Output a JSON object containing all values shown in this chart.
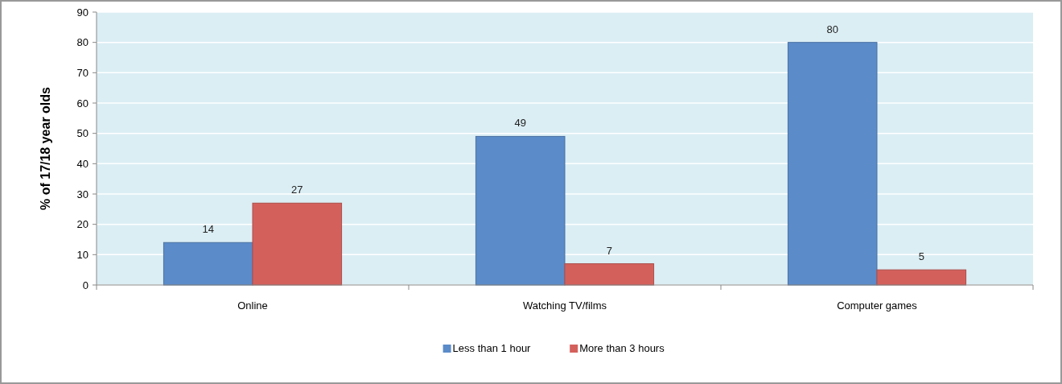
{
  "chart_data": {
    "type": "bar",
    "ylabel": "% of 17/18 year olds",
    "categories": [
      "Online",
      "Watching TV/films",
      "Computer games"
    ],
    "series": [
      {
        "name": "Less than 1 hour",
        "color": "#5b8bc9",
        "values": [
          14,
          49,
          80
        ]
      },
      {
        "name": "More than 3 hours",
        "color": "#d4605c",
        "values": [
          27,
          7,
          5
        ]
      }
    ],
    "ylim": [
      0,
      90
    ],
    "yticks": [
      0,
      10,
      20,
      30,
      40,
      50,
      60,
      70,
      80,
      90
    ],
    "grid": "y",
    "legend": "bottom",
    "data_labels": true
  }
}
